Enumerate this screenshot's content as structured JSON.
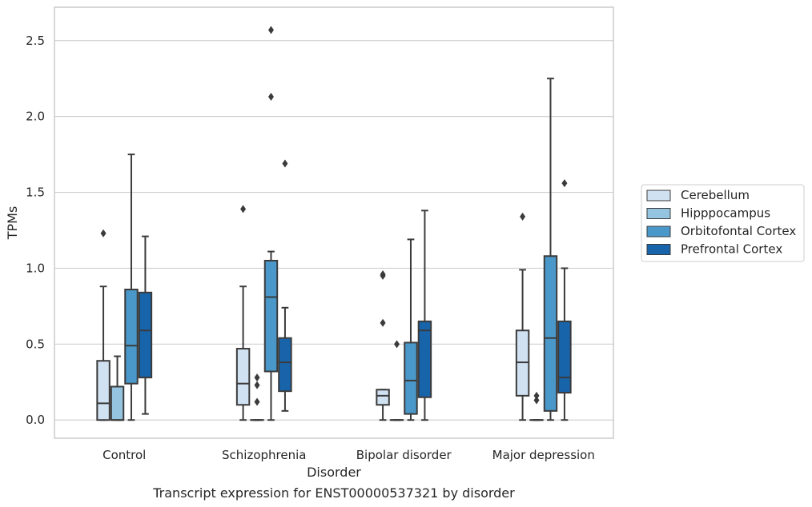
{
  "caption": "Transcript expression for ENST00000537321 by disorder",
  "chart_data": {
    "type": "box",
    "title": "",
    "xlabel": "Disorder",
    "ylabel": "TPMs",
    "ylim": [
      -0.12,
      2.72
    ],
    "yticks": [
      0.0,
      0.5,
      1.0,
      1.5,
      2.0,
      2.5
    ],
    "ytick_labels": [
      "0.0",
      "0.5",
      "1.0",
      "1.5",
      "2.0",
      "2.5"
    ],
    "grid": "horizontal",
    "legend_placement": "right",
    "categories": [
      "Control",
      "Schizophrenia",
      "Bipolar disorder",
      "Major depression"
    ],
    "series": [
      {
        "name": "Cerebellum",
        "color": "#d0e1f2",
        "boxes": [
          {
            "whislo": 0.0,
            "q1": 0.0,
            "med": 0.11,
            "q3": 0.39,
            "whishi": 0.88,
            "fliers": [
              1.23
            ]
          },
          {
            "whislo": 0.0,
            "q1": 0.1,
            "med": 0.24,
            "q3": 0.47,
            "whishi": 0.88,
            "fliers": [
              1.39
            ]
          },
          {
            "whislo": 0.0,
            "q1": 0.1,
            "med": 0.16,
            "q3": 0.2,
            "whishi": 0.2,
            "fliers": [
              0.64,
              0.95,
              0.96
            ]
          },
          {
            "whislo": 0.0,
            "q1": 0.16,
            "med": 0.38,
            "q3": 0.59,
            "whishi": 0.99,
            "fliers": [
              1.34
            ]
          }
        ]
      },
      {
        "name": "Hipppocampus",
        "color": "#94c4df",
        "boxes": [
          {
            "whislo": 0.0,
            "q1": 0.0,
            "med": 0.0,
            "q3": 0.22,
            "whishi": 0.42,
            "fliers": []
          },
          {
            "whislo": 0.0,
            "q1": 0.0,
            "med": 0.0,
            "q3": 0.0,
            "whishi": 0.0,
            "fliers": [
              0.12,
              0.23,
              0.28
            ]
          },
          {
            "whislo": 0.0,
            "q1": 0.0,
            "med": 0.0,
            "q3": 0.0,
            "whishi": 0.0,
            "fliers": [
              0.5
            ]
          },
          {
            "whislo": 0.0,
            "q1": 0.0,
            "med": 0.0,
            "q3": 0.0,
            "whishi": 0.0,
            "fliers": [
              0.13,
              0.16
            ]
          }
        ]
      },
      {
        "name": "Orbitofontal Cortex",
        "color": "#4a98c9",
        "boxes": [
          {
            "whislo": 0.0,
            "q1": 0.24,
            "med": 0.49,
            "q3": 0.86,
            "whishi": 1.75,
            "fliers": []
          },
          {
            "whislo": 0.0,
            "q1": 0.32,
            "med": 0.81,
            "q3": 1.05,
            "whishi": 1.11,
            "fliers": [
              2.13,
              2.57
            ]
          },
          {
            "whislo": 0.0,
            "q1": 0.04,
            "med": 0.26,
            "q3": 0.51,
            "whishi": 1.19,
            "fliers": []
          },
          {
            "whislo": 0.0,
            "q1": 0.06,
            "med": 0.54,
            "q3": 1.08,
            "whishi": 2.25,
            "fliers": []
          }
        ]
      },
      {
        "name": "Prefrontal Cortex",
        "color": "#1764ab",
        "boxes": [
          {
            "whislo": 0.04,
            "q1": 0.28,
            "med": 0.59,
            "q3": 0.84,
            "whishi": 1.21,
            "fliers": []
          },
          {
            "whislo": 0.06,
            "q1": 0.19,
            "med": 0.38,
            "q3": 0.54,
            "whishi": 0.74,
            "fliers": [
              1.69
            ]
          },
          {
            "whislo": 0.0,
            "q1": 0.15,
            "med": 0.59,
            "q3": 0.65,
            "whishi": 1.38,
            "fliers": []
          },
          {
            "whislo": 0.0,
            "q1": 0.18,
            "med": 0.28,
            "q3": 0.65,
            "whishi": 1.0,
            "fliers": [
              1.56
            ]
          }
        ]
      }
    ]
  }
}
